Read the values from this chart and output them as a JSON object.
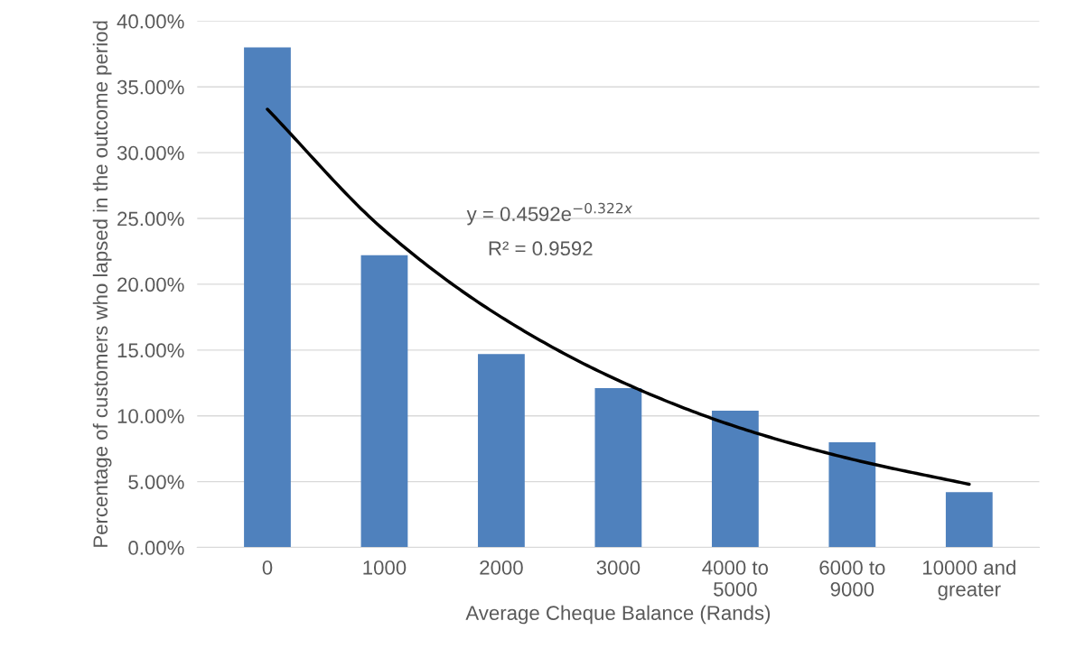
{
  "chart_data": {
    "type": "bar",
    "xlabel": "Average Cheque Balance (Rands)",
    "ylabel": "Percentage of customers who lapsed in the outcome period",
    "categories": [
      "0",
      "1000",
      "2000",
      "3000",
      "4000 to\n5000",
      "6000 to\n9000",
      "10000 and\ngreater"
    ],
    "series": [
      {
        "color": "#4f81bd",
        "values": [
          38.0,
          22.2,
          14.7,
          12.1,
          10.4,
          8.0,
          4.2
        ]
      },
      {
        "type": "line",
        "color": "#000000",
        "values": [
          33.3,
          24.1,
          17.5,
          12.7,
          9.2,
          6.7,
          4.8
        ]
      }
    ],
    "ylim": [
      0,
      40
    ],
    "yticks": [
      {
        "value": 0,
        "label": "0.00%"
      },
      {
        "value": 5,
        "label": "5.00%"
      },
      {
        "value": 10,
        "label": "10.00%"
      },
      {
        "value": 15,
        "label": "15.00%"
      },
      {
        "value": 20,
        "label": "20.00%"
      },
      {
        "value": 25,
        "label": "25.00%"
      },
      {
        "value": 30,
        "label": "30.00%"
      },
      {
        "value": 35,
        "label": "35.00%"
      },
      {
        "value": 40,
        "label": "40.00%"
      }
    ],
    "grid": "y",
    "annotations": [
      "y = 0.4592e$^{−0.322x}$",
      "R² = 0.9592"
    ]
  }
}
